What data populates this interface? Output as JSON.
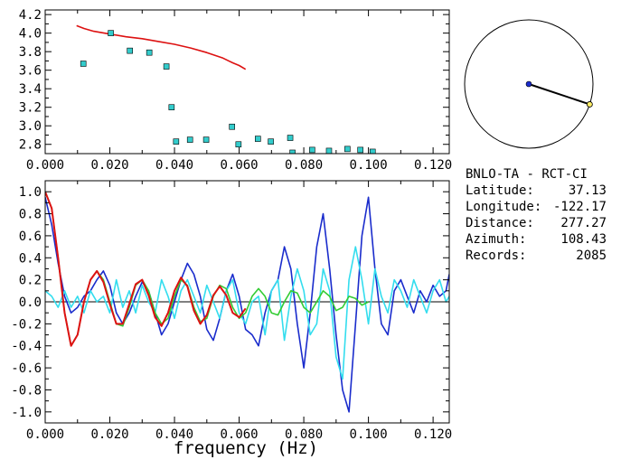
{
  "station": {
    "name": "BNLO-TA",
    "separator": "-",
    "reference": "RCT-CI"
  },
  "info": [
    {
      "label": "Latitude:",
      "value": "37.13"
    },
    {
      "label": "Longitude:",
      "value": "-122.17"
    },
    {
      "label": "Distance:",
      "value": "277.27"
    },
    {
      "label": "Azimuth:",
      "value": "108.43"
    },
    {
      "label": "Records:",
      "value": "2085"
    }
  ],
  "azimuth_deg": 108.43,
  "colors": {
    "red": "#dd1111",
    "cyan_marker": "#33cccc",
    "blue": "#1a2ccc",
    "cyan": "#33ddee",
    "green": "#33cc33",
    "frame": "#000000",
    "dot_end": "#ffee66"
  },
  "chart_data": [
    {
      "type": "scatter",
      "xlim": [
        0,
        0.125
      ],
      "ylim": [
        2.7,
        4.25
      ],
      "xticks": [
        "0.000",
        "0.020",
        "0.040",
        "0.060",
        "0.080",
        "0.100",
        "0.120"
      ],
      "yticks": [
        "2.8",
        "3.0",
        "3.2",
        "3.4",
        "3.6",
        "3.8",
        "4.0",
        "4.2"
      ],
      "series": [
        {
          "kind": "line",
          "color": "#dd1111",
          "x": [
            0.0097,
            0.012,
            0.015,
            0.02,
            0.025,
            0.03,
            0.035,
            0.04,
            0.045,
            0.05,
            0.055,
            0.058,
            0.06,
            0.062
          ],
          "y": [
            4.08,
            4.05,
            4.02,
            3.99,
            3.96,
            3.94,
            3.91,
            3.88,
            3.84,
            3.79,
            3.73,
            3.68,
            3.65,
            3.61
          ]
        },
        {
          "kind": "markers",
          "color": "#33cccc",
          "x": [
            0.0118,
            0.0203,
            0.0262,
            0.0322,
            0.0375,
            0.0391,
            0.0405,
            0.0448,
            0.0498,
            0.0578,
            0.0598,
            0.0658,
            0.0698,
            0.0758,
            0.0765,
            0.0826,
            0.0878,
            0.0935,
            0.0975,
            0.1013
          ],
          "y": [
            3.67,
            4.0,
            3.81,
            3.79,
            3.64,
            3.2,
            2.83,
            2.85,
            2.85,
            2.99,
            2.8,
            2.86,
            2.83,
            2.87,
            2.71,
            2.74,
            2.73,
            2.75,
            2.74,
            2.72
          ]
        }
      ]
    },
    {
      "type": "line",
      "xlim": [
        0,
        0.125
      ],
      "ylim": [
        -1.1,
        1.1
      ],
      "xticks": [
        "0.000",
        "0.020",
        "0.040",
        "0.060",
        "0.080",
        "0.100",
        "0.120"
      ],
      "yticks": [
        "-1.0",
        "-0.8",
        "-0.6",
        "-0.4",
        "-0.2",
        "0.0",
        "0.2",
        "0.4",
        "0.6",
        "0.8",
        "1.0"
      ],
      "xlabel": "frequency (Hz)",
      "series": [
        {
          "color": "#1a2ccc",
          "x": [
            0.0,
            0.002,
            0.004,
            0.006,
            0.008,
            0.01,
            0.012,
            0.014,
            0.016,
            0.018,
            0.02,
            0.022,
            0.024,
            0.026,
            0.028,
            0.03,
            0.032,
            0.034,
            0.036,
            0.038,
            0.04,
            0.042,
            0.044,
            0.046,
            0.048,
            0.05,
            0.052,
            0.054,
            0.056,
            0.058,
            0.06,
            0.062,
            0.064,
            0.066,
            0.068,
            0.07,
            0.072,
            0.074,
            0.076,
            0.078,
            0.08,
            0.082,
            0.084,
            0.086,
            0.088,
            0.09,
            0.092,
            0.094,
            0.096,
            0.098,
            0.1,
            0.102,
            0.104,
            0.106,
            0.108,
            0.11,
            0.112,
            0.114,
            0.116,
            0.118,
            0.12,
            0.122,
            0.124,
            0.125
          ],
          "y": [
            0.95,
            0.7,
            0.35,
            0.05,
            -0.1,
            -0.05,
            0.05,
            0.1,
            0.2,
            0.28,
            0.15,
            -0.1,
            -0.2,
            -0.1,
            0.05,
            0.18,
            0.1,
            -0.1,
            -0.3,
            -0.2,
            0.0,
            0.2,
            0.35,
            0.25,
            0.05,
            -0.25,
            -0.35,
            -0.15,
            0.1,
            0.25,
            0.05,
            -0.25,
            -0.3,
            -0.4,
            -0.1,
            0.1,
            0.2,
            0.5,
            0.3,
            -0.2,
            -0.6,
            -0.1,
            0.5,
            0.8,
            0.3,
            -0.3,
            -0.8,
            -1.0,
            -0.2,
            0.6,
            0.95,
            0.3,
            -0.2,
            -0.3,
            0.1,
            0.2,
            0.05,
            -0.1,
            0.1,
            0.0,
            0.15,
            0.05,
            0.1,
            0.25
          ]
        },
        {
          "color": "#33ddee",
          "x": [
            0.0,
            0.002,
            0.004,
            0.006,
            0.008,
            0.01,
            0.012,
            0.014,
            0.016,
            0.018,
            0.02,
            0.022,
            0.024,
            0.026,
            0.028,
            0.03,
            0.032,
            0.034,
            0.036,
            0.038,
            0.04,
            0.042,
            0.044,
            0.046,
            0.048,
            0.05,
            0.052,
            0.054,
            0.056,
            0.058,
            0.06,
            0.062,
            0.064,
            0.066,
            0.068,
            0.07,
            0.072,
            0.074,
            0.076,
            0.078,
            0.08,
            0.082,
            0.084,
            0.086,
            0.088,
            0.09,
            0.092,
            0.094,
            0.096,
            0.098,
            0.1,
            0.102,
            0.104,
            0.106,
            0.108,
            0.11,
            0.112,
            0.114,
            0.116,
            0.118,
            0.12,
            0.122,
            0.124,
            0.125
          ],
          "y": [
            0.1,
            0.05,
            -0.05,
            0.1,
            -0.05,
            0.05,
            -0.1,
            0.1,
            0.0,
            0.05,
            -0.1,
            0.2,
            -0.05,
            0.1,
            -0.1,
            0.15,
            0.0,
            -0.1,
            0.2,
            0.05,
            -0.15,
            0.1,
            0.2,
            0.05,
            -0.1,
            0.15,
            0.0,
            -0.15,
            0.1,
            0.2,
            -0.1,
            -0.2,
            0.0,
            0.05,
            -0.3,
            0.1,
            0.2,
            -0.35,
            0.05,
            0.3,
            0.1,
            -0.3,
            -0.2,
            0.3,
            0.1,
            -0.5,
            -0.7,
            0.2,
            0.5,
            0.2,
            -0.2,
            0.3,
            0.05,
            -0.1,
            0.2,
            0.1,
            -0.05,
            0.2,
            0.05,
            -0.1,
            0.1,
            0.2,
            0.0,
            0.05
          ]
        },
        {
          "color": "#33cc33",
          "x": [
            0.0,
            0.002,
            0.004,
            0.006,
            0.008,
            0.01,
            0.012,
            0.014,
            0.016,
            0.018,
            0.02,
            0.022,
            0.024,
            0.026,
            0.028,
            0.03,
            0.032,
            0.034,
            0.036,
            0.038,
            0.04,
            0.042,
            0.044,
            0.046,
            0.048,
            0.05,
            0.052,
            0.054,
            0.056,
            0.058,
            0.06,
            0.062,
            0.064,
            0.066,
            0.068,
            0.07,
            0.072,
            0.074,
            0.076,
            0.078,
            0.08,
            0.082,
            0.084,
            0.086,
            0.088,
            0.09,
            0.092,
            0.094,
            0.096,
            0.098,
            0.1
          ],
          "y": [
            1.0,
            0.85,
            0.4,
            -0.1,
            -0.4,
            -0.3,
            0.0,
            0.2,
            0.28,
            0.2,
            0.0,
            -0.2,
            -0.22,
            -0.05,
            0.15,
            0.2,
            0.1,
            -0.1,
            -0.2,
            -0.15,
            0.05,
            0.2,
            0.15,
            -0.05,
            -0.18,
            -0.15,
            0.05,
            0.15,
            0.12,
            -0.05,
            -0.15,
            -0.1,
            0.05,
            0.12,
            0.05,
            -0.1,
            -0.12,
            0.0,
            0.1,
            0.08,
            -0.05,
            -0.1,
            0.0,
            0.1,
            0.05,
            -0.08,
            -0.05,
            0.05,
            0.03,
            -0.03,
            0.0
          ]
        },
        {
          "color": "#dd1111",
          "x": [
            0.0,
            0.002,
            0.004,
            0.006,
            0.008,
            0.01,
            0.012,
            0.014,
            0.016,
            0.018,
            0.02,
            0.022,
            0.024,
            0.026,
            0.028,
            0.03,
            0.032,
            0.034,
            0.036,
            0.038,
            0.04,
            0.042,
            0.044,
            0.046,
            0.048,
            0.05,
            0.052,
            0.054,
            0.056,
            0.058,
            0.06,
            0.062
          ],
          "y": [
            1.0,
            0.85,
            0.4,
            -0.1,
            -0.4,
            -0.3,
            0.0,
            0.2,
            0.28,
            0.18,
            -0.02,
            -0.2,
            -0.2,
            -0.02,
            0.16,
            0.2,
            0.06,
            -0.14,
            -0.22,
            -0.1,
            0.1,
            0.22,
            0.14,
            -0.08,
            -0.2,
            -0.12,
            0.06,
            0.14,
            0.06,
            -0.1,
            -0.14,
            -0.06
          ]
        }
      ]
    }
  ]
}
